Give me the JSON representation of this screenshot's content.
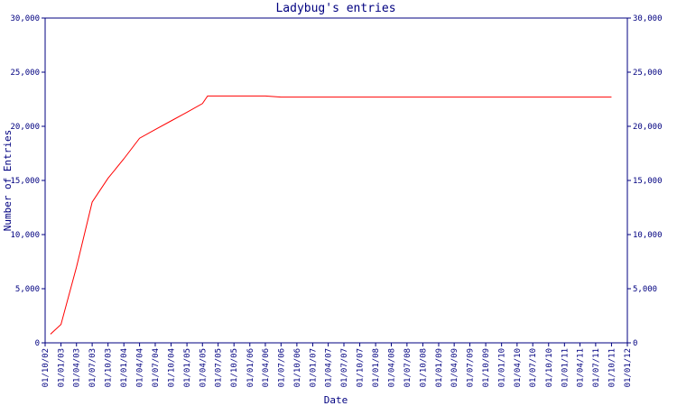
{
  "chart_data": {
    "type": "line",
    "title": "Ladybug's entries",
    "x_label": "Date",
    "y_label": "Number of Entries",
    "x": [
      "01/11/02",
      "01/01/03",
      "01/04/03",
      "01/07/03",
      "01/10/03",
      "01/01/04",
      "01/04/04",
      "01/07/04",
      "01/10/04",
      "01/01/05",
      "01/04/05",
      "01/05/05",
      "01/04/06",
      "01/07/06",
      "01/10/11"
    ],
    "series": [
      {
        "color": "#ff0000",
        "values": [
          800,
          1700,
          7000,
          13000,
          15200,
          17000,
          18900,
          19700,
          20500,
          21300,
          22100,
          22800,
          22800,
          22700,
          22700
        ]
      }
    ],
    "xlim": [
      "01/10/02",
      "01/01/12"
    ],
    "xticks": [
      "01/10/02",
      "01/01/03",
      "01/04/03",
      "01/07/03",
      "01/10/03",
      "01/01/04",
      "01/04/04",
      "01/07/04",
      "01/10/04",
      "01/01/05",
      "01/04/05",
      "01/07/05",
      "01/10/05",
      "01/01/06",
      "01/04/06",
      "01/07/06",
      "01/10/06",
      "01/01/07",
      "01/04/07",
      "01/07/07",
      "01/10/07",
      "01/01/08",
      "01/04/08",
      "01/07/08",
      "01/10/08",
      "01/01/09",
      "01/04/09",
      "01/07/09",
      "01/10/09",
      "01/01/10",
      "01/04/10",
      "01/07/10",
      "01/10/10",
      "01/01/11",
      "01/04/11",
      "01/07/11",
      "01/10/11",
      "01/01/12"
    ],
    "ylim": [
      0,
      30000
    ],
    "yticks": [
      0,
      {
        "value": 5000,
        "label": "5,000"
      },
      {
        "value": 10000,
        "label": "10,000"
      },
      {
        "value": 15000,
        "label": "15,000"
      },
      {
        "value": 20000,
        "label": "20,000"
      },
      {
        "value": 25000,
        "label": "25,000"
      },
      {
        "value": 30000,
        "label": "30,000"
      }
    ],
    "y2lim": [
      0,
      30000
    ],
    "y2ticks": [
      0,
      {
        "value": 5000,
        "label": "5,000"
      },
      {
        "value": 10000,
        "label": "10,000"
      },
      {
        "value": 15000,
        "label": "15,000"
      },
      {
        "value": 20000,
        "label": "20,000"
      },
      {
        "value": 25000,
        "label": "25,000"
      },
      {
        "value": 30000,
        "label": "30,000"
      }
    ],
    "axis_color": "#000080",
    "grid": false
  }
}
